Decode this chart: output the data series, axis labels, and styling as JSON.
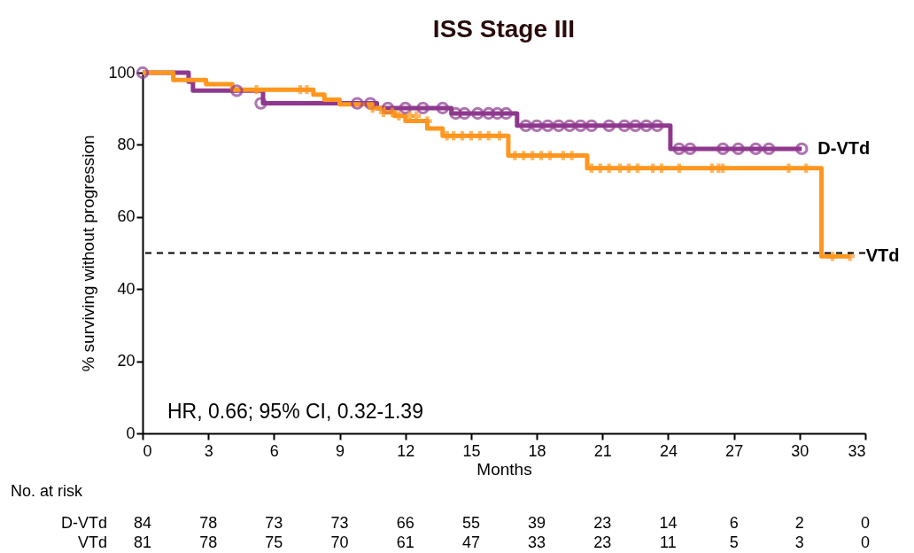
{
  "chart_data": {
    "type": "step",
    "title": "ISS Stage III",
    "xlabel": "Months",
    "ylabel": "% surviving without progression",
    "xlim": [
      0,
      33
    ],
    "xticks": [
      0,
      3,
      6,
      9,
      12,
      15,
      18,
      21,
      24,
      27,
      30,
      33
    ],
    "ylim": [
      0,
      100
    ],
    "yticks": [
      0,
      20,
      40,
      60,
      80,
      100
    ],
    "grid": false,
    "series": [
      {
        "name": "D-VTd",
        "color": "#8e388e",
        "marker": "none",
        "x": [
          0,
          2.1,
          2.3,
          5.5,
          10.7,
          14.1,
          17.1,
          24.1,
          30.1
        ],
        "values": [
          100,
          97.5,
          95,
          91.5,
          90.2,
          88.7,
          85.3,
          78.9,
          78.9
        ]
      },
      {
        "name": "VTd",
        "color": "#ff961e",
        "marker": "none",
        "x": [
          0,
          1.4,
          2.9,
          4.1,
          7.8,
          8.3,
          9.0,
          10.5,
          11.0,
          11.5,
          12.0,
          13.0,
          13.7,
          16.7,
          20.3,
          31.0,
          32.3
        ],
        "values": [
          100,
          98,
          96.8,
          95.3,
          93.9,
          92.5,
          91.2,
          90.2,
          89,
          88,
          86.6,
          84.5,
          82.5,
          77,
          73.5,
          49.1,
          49.1
        ]
      },
      {
        "type": "scatter",
        "color": "#8e388e",
        "marker": "circle",
        "x": [
          0,
          4.3,
          5.4,
          9.8,
          10.4,
          11.2,
          12.0,
          12.8,
          13.7,
          14.3,
          14.7,
          15.3,
          15.8,
          16.2,
          16.6,
          17.5,
          18.0,
          18.5,
          19.0,
          19.5,
          20.0,
          20.5,
          21.3,
          22.0,
          22.5,
          23.0,
          23.5,
          24.5,
          25.0,
          26.5,
          27.2,
          28.0,
          28.6,
          30.1
        ],
        "values": [
          100,
          95,
          91.5,
          91.5,
          91.5,
          90.2,
          90.2,
          90.2,
          90.2,
          88.7,
          88.7,
          88.7,
          88.7,
          88.7,
          88.7,
          85.3,
          85.3,
          85.3,
          85.3,
          85.3,
          85.3,
          85.3,
          85.3,
          85.3,
          85.3,
          85.3,
          85.3,
          78.9,
          78.9,
          78.9,
          78.9,
          78.9,
          78.9,
          78.9
        ]
      },
      {
        "type": "scatter",
        "color": "#ff961e",
        "marker": "cross",
        "x": [
          5.2,
          7.2,
          7.5,
          10.5,
          11.0,
          11.4,
          11.7,
          12.2,
          12.5,
          13.0,
          13.9,
          14.2,
          14.6,
          15.0,
          15.4,
          15.8,
          16.3,
          17.0,
          17.4,
          17.8,
          18.2,
          18.6,
          19.2,
          19.6,
          20.5,
          20.9,
          21.3,
          21.8,
          22.2,
          22.6,
          23.3,
          23.7,
          24.5,
          26.0,
          26.3,
          26.5,
          29.5,
          30.3,
          31.5,
          32.3
        ],
        "values": [
          95.3,
          95.3,
          95.3,
          90.2,
          89,
          89,
          88,
          88,
          88,
          86.6,
          82.5,
          82.5,
          82.5,
          82.5,
          82.5,
          82.5,
          82.5,
          77,
          77,
          77,
          77,
          77,
          77,
          77,
          73.5,
          73.5,
          73.5,
          73.5,
          73.5,
          73.5,
          73.5,
          73.5,
          73.5,
          73.5,
          73.5,
          73.5,
          73.5,
          73.5,
          49.1,
          49.1
        ]
      }
    ],
    "ref_lines": [
      {
        "axis": "y",
        "value": 50,
        "line_style": "dashed",
        "color": "#000000"
      }
    ],
    "annotations": [
      "HR, 0.66; 95% CI, 0.32-1.39",
      "No. at risk",
      "D-VTd",
      "VTd",
      "84",
      "78",
      "73",
      "73",
      "66",
      "55",
      "39",
      "23",
      "14",
      "6",
      "2",
      "0",
      "81",
      "78",
      "75",
      "70",
      "61",
      "47",
      "33",
      "23",
      "11",
      "5",
      "3",
      "0"
    ]
  }
}
